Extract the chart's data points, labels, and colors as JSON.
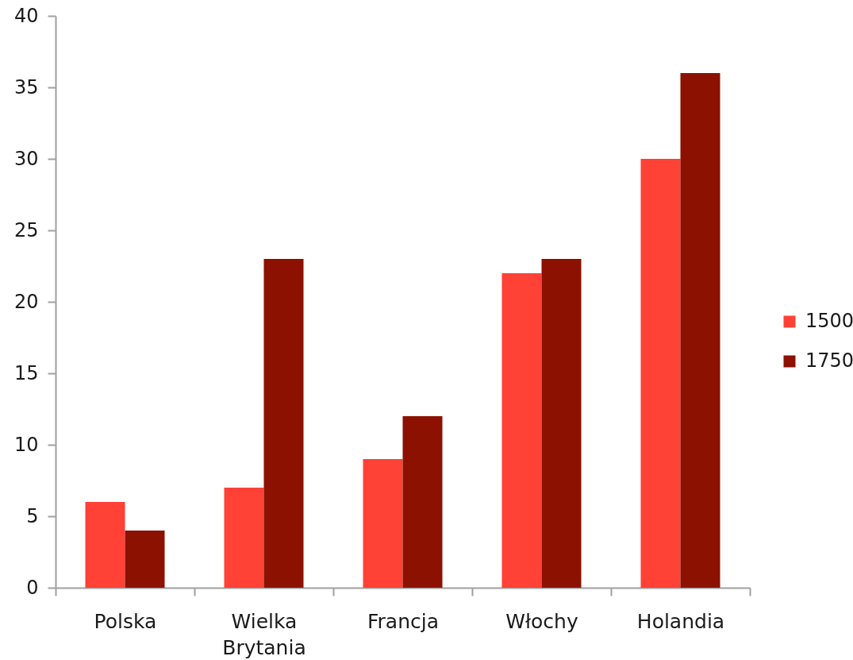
{
  "chart_data": {
    "type": "bar",
    "categories": [
      "Polska",
      "Wielka Brytania",
      "Francja",
      "Włochy",
      "Holandia"
    ],
    "series": [
      {
        "name": "1500",
        "color": "#ff4136",
        "values": [
          6,
          7,
          9,
          22,
          30
        ]
      },
      {
        "name": "1750",
        "color": "#8c1100",
        "values": [
          4,
          23,
          12,
          23,
          36
        ]
      }
    ],
    "ylim": [
      0,
      40
    ],
    "yticks": [
      0,
      5,
      10,
      15,
      20,
      25,
      30,
      35,
      40
    ],
    "legend": "right"
  }
}
